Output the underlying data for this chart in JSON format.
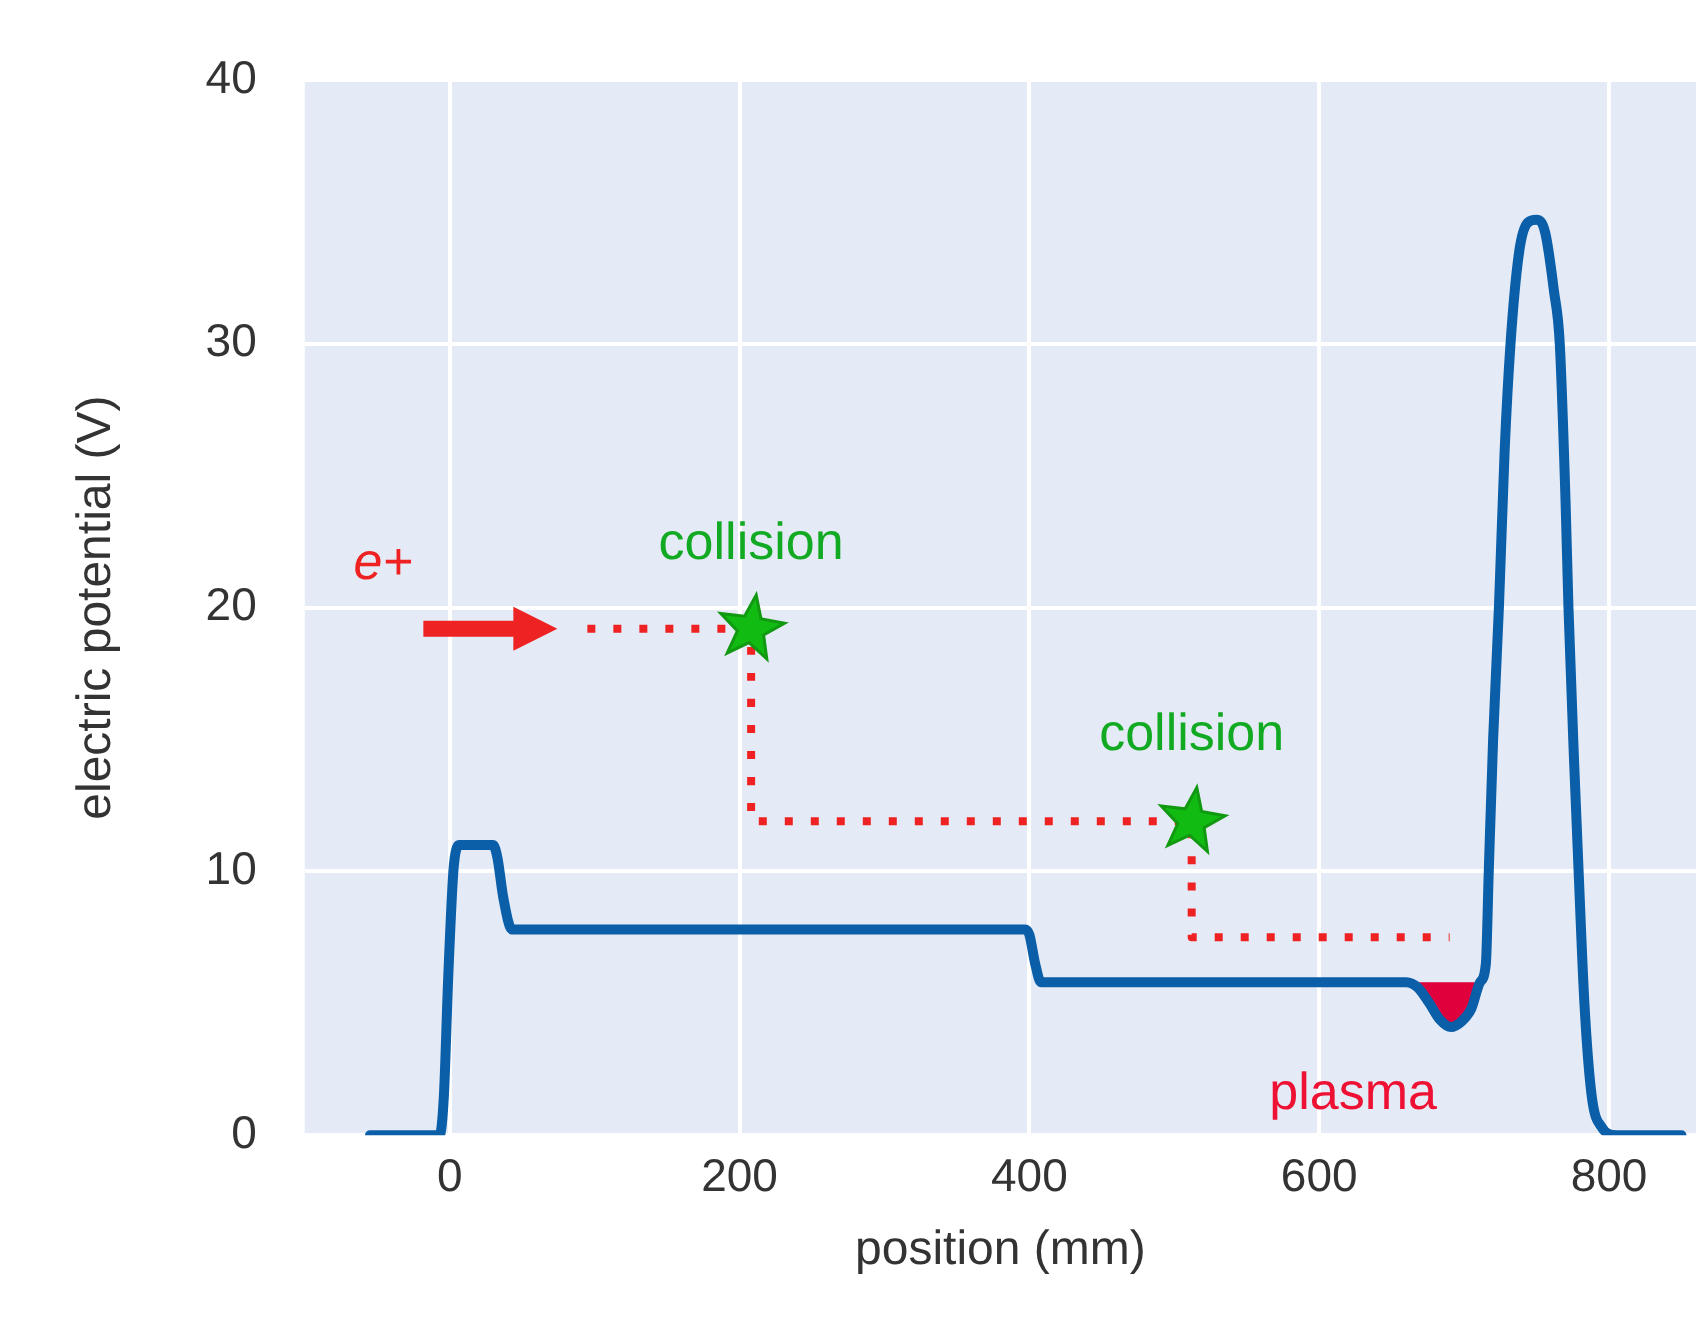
{
  "chart_data": {
    "type": "line",
    "xlabel": "position (mm)",
    "ylabel": "electric potential (V)",
    "xlim": [
      -100,
      860
    ],
    "xticks": [
      0,
      200,
      400,
      600,
      800
    ],
    "ylim": [
      0,
      40
    ],
    "yticks": [
      0,
      10,
      20,
      30,
      40
    ],
    "grid": true,
    "legend": false,
    "marker": "none",
    "line_style": "solid",
    "series": [
      {
        "color": "#0b5ea8",
        "x": [
          -55,
          -7,
          -4,
          -1,
          3,
          7,
          30,
          33,
          37,
          43,
          397,
          400,
          404,
          408,
          660,
          668,
          676,
          683,
          691,
          698,
          705,
          711,
          715,
          717,
          720,
          724,
          728,
          732,
          738,
          744,
          750,
          756,
          762,
          766,
          770,
          772,
          776,
          779,
          783,
          788,
          795,
          805,
          850
        ],
        "values": [
          0,
          0,
          1.5,
          6,
          10.3,
          11,
          11,
          10.5,
          9,
          7.8,
          7.8,
          7.6,
          6.5,
          5.8,
          5.8,
          5.6,
          5.0,
          4.4,
          4.1,
          4.3,
          4.8,
          5.8,
          6.5,
          10,
          15,
          20,
          26,
          30,
          33.5,
          34.6,
          34.7,
          34.2,
          32,
          30,
          24,
          20,
          14,
          10,
          5,
          1.5,
          0.3,
          0,
          0
        ]
      },
      {
        "color": "#ee2222",
        "line_style": "dotted",
        "x": [
          95,
          208,
          208,
          512,
          512,
          690
        ],
        "values": [
          19.2,
          19.2,
          11.9,
          11.9,
          7.5,
          7.5
        ]
      }
    ],
    "annotations": [
      "e+",
      {
        "text": "collision",
        "x": 208,
        "y": 19.2
      },
      {
        "text": "collision",
        "x": 512,
        "y": 11.9
      },
      {
        "text": "plasma",
        "x": 691,
        "y": 4.1
      }
    ]
  }
}
